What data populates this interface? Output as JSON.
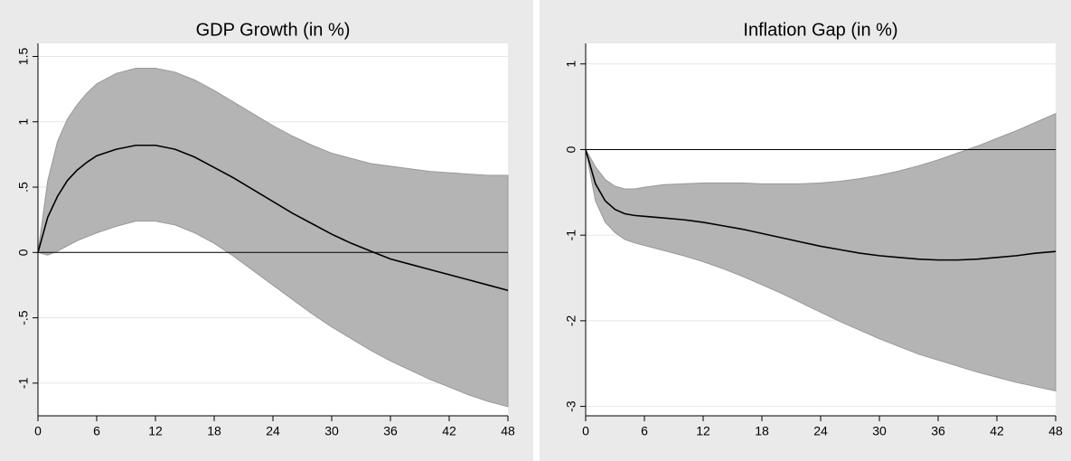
{
  "chart_data": [
    {
      "type": "line",
      "title": "GDP Growth (in %)",
      "x": [
        0,
        1,
        2,
        3,
        4,
        5,
        6,
        8,
        10,
        12,
        14,
        16,
        18,
        20,
        22,
        24,
        26,
        28,
        30,
        32,
        34,
        36,
        38,
        40,
        42,
        44,
        46,
        48
      ],
      "values": [
        0,
        0.27,
        0.43,
        0.55,
        0.63,
        0.69,
        0.74,
        0.79,
        0.82,
        0.82,
        0.79,
        0.73,
        0.65,
        0.57,
        0.48,
        0.39,
        0.3,
        0.22,
        0.14,
        0.07,
        0.01,
        -0.05,
        -0.09,
        -0.13,
        -0.17,
        -0.21,
        -0.25,
        -0.29
      ],
      "upper": [
        0,
        0.55,
        0.85,
        1.02,
        1.13,
        1.22,
        1.29,
        1.37,
        1.41,
        1.41,
        1.38,
        1.32,
        1.24,
        1.15,
        1.06,
        0.97,
        0.89,
        0.82,
        0.76,
        0.72,
        0.68,
        0.66,
        0.64,
        0.62,
        0.61,
        0.6,
        0.59,
        0.59
      ],
      "lower": [
        0,
        -0.02,
        0.01,
        0.05,
        0.09,
        0.12,
        0.15,
        0.2,
        0.24,
        0.24,
        0.21,
        0.15,
        0.07,
        -0.03,
        -0.14,
        -0.25,
        -0.36,
        -0.47,
        -0.57,
        -0.66,
        -0.75,
        -0.83,
        -0.9,
        -0.97,
        -1.03,
        -1.09,
        -1.14,
        -1.18
      ],
      "color": "#000000",
      "band_color": "#b4b4b4",
      "xlim": [
        0,
        48
      ],
      "xticks": [
        0,
        6,
        12,
        18,
        24,
        30,
        36,
        42,
        48
      ],
      "ylim": [
        -1.25,
        1.6
      ],
      "yticks": [
        {
          "value": -1,
          "label": "-1"
        },
        {
          "value": -0.5,
          "label": "-.5"
        },
        0,
        {
          "value": 0.5,
          "label": ".5"
        },
        1,
        1.5
      ],
      "grid": true
    },
    {
      "type": "line",
      "title": "Inflation Gap (in %)",
      "x": [
        0,
        1,
        2,
        3,
        4,
        5,
        6,
        8,
        10,
        12,
        14,
        16,
        18,
        20,
        22,
        24,
        26,
        28,
        30,
        32,
        34,
        36,
        38,
        40,
        42,
        44,
        46,
        48
      ],
      "values": [
        0,
        -0.4,
        -0.6,
        -0.7,
        -0.75,
        -0.77,
        -0.78,
        -0.8,
        -0.82,
        -0.85,
        -0.89,
        -0.93,
        -0.98,
        -1.03,
        -1.08,
        -1.13,
        -1.17,
        -1.21,
        -1.24,
        -1.26,
        -1.28,
        -1.29,
        -1.29,
        -1.28,
        -1.26,
        -1.24,
        -1.21,
        -1.19
      ],
      "upper": [
        0,
        -0.2,
        -0.35,
        -0.43,
        -0.46,
        -0.46,
        -0.44,
        -0.41,
        -0.4,
        -0.39,
        -0.39,
        -0.39,
        -0.4,
        -0.4,
        -0.4,
        -0.39,
        -0.37,
        -0.34,
        -0.3,
        -0.25,
        -0.19,
        -0.12,
        -0.04,
        0.04,
        0.13,
        0.22,
        0.32,
        0.42
      ],
      "lower": [
        0,
        -0.6,
        -0.85,
        -0.97,
        -1.05,
        -1.09,
        -1.12,
        -1.18,
        -1.24,
        -1.31,
        -1.39,
        -1.48,
        -1.58,
        -1.68,
        -1.79,
        -1.9,
        -2.01,
        -2.11,
        -2.21,
        -2.3,
        -2.39,
        -2.46,
        -2.53,
        -2.6,
        -2.66,
        -2.72,
        -2.77,
        -2.82
      ],
      "color": "#000000",
      "band_color": "#b4b4b4",
      "xlim": [
        0,
        48
      ],
      "xticks": [
        0,
        6,
        12,
        18,
        24,
        30,
        36,
        42,
        48
      ],
      "ylim": [
        -3.11,
        1.24
      ],
      "yticks": [
        -3,
        -2,
        -1,
        0,
        1
      ],
      "grid": true
    }
  ]
}
